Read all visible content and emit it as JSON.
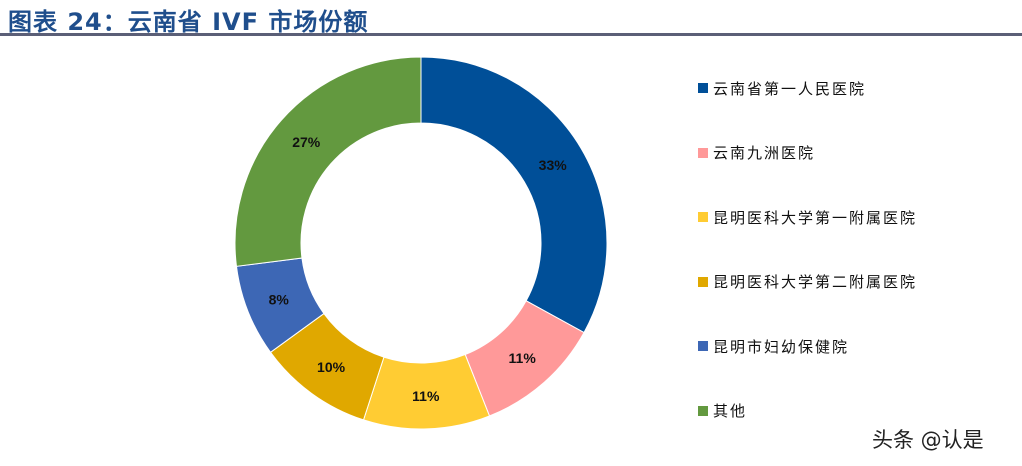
{
  "title": "图表 24：云南省 IVF 市场份额",
  "watermark": "头条 @认是",
  "legend": [
    {
      "label": "云南省第一人民医院",
      "color": "#004f98"
    },
    {
      "label": "云南九洲医院",
      "color": "#ff9999"
    },
    {
      "label": "昆明医科大学第一附属医院",
      "color": "#ffcc33"
    },
    {
      "label": "昆明医科大学第二附属医院",
      "color": "#e0a800"
    },
    {
      "label": "昆明市妇幼保健院",
      "color": "#3d67b5"
    },
    {
      "label": "其他",
      "color": "#63993f"
    }
  ],
  "chart_data": {
    "type": "pie",
    "variant": "donut",
    "title": "图表 24：云南省 IVF 市场份额",
    "categories": [
      "云南省第一人民医院",
      "云南九洲医院",
      "昆明医科大学第一附属医院",
      "昆明医科大学第二附属医院",
      "昆明市妇幼保健院",
      "其他"
    ],
    "values": [
      33,
      11,
      11,
      10,
      8,
      27
    ],
    "labels": [
      "33%",
      "11%",
      "11%",
      "10%",
      "8%",
      "27%"
    ],
    "colors": [
      "#004f98",
      "#ff9999",
      "#ffcc33",
      "#e0a800",
      "#3d67b5",
      "#63993f"
    ],
    "legend_position": "right",
    "start_angle": "12 o'clock, clockwise"
  }
}
